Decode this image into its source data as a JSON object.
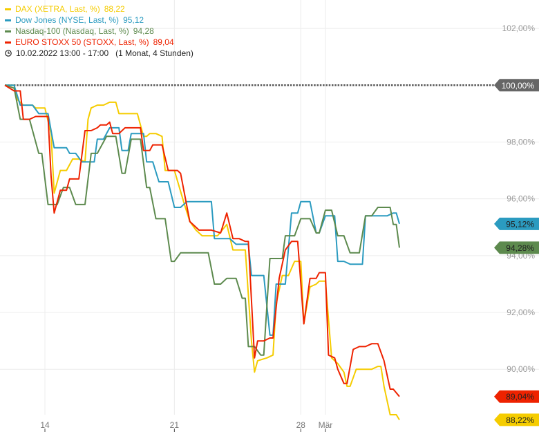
{
  "legend": [
    {
      "label": "DAX (XETRA, Last, %)",
      "value": "88,22",
      "color": "#f5cc00"
    },
    {
      "label": "Dow Jones (NYSE, Last, %)",
      "value": "95,12",
      "color": "#2b9bc0"
    },
    {
      "label": "Nasdaq-100 (Nasdaq, Last, %)",
      "value": "94,28",
      "color": "#5d8a4e"
    },
    {
      "label": "EURO STOXX 50 (STOXX, Last, %)",
      "value": "89,04",
      "color": "#ee2200"
    }
  ],
  "time": {
    "icon": "clock-icon",
    "date_range": "10.02.2022 13:00 - 17:00",
    "period": "(1 Monat, 4 Stunden)"
  },
  "chart_data": {
    "type": "line",
    "y_unit": "%",
    "ylim": [
      88.4,
      103.0
    ],
    "yticks": [
      {
        "value": 90,
        "label": "90,00%"
      },
      {
        "value": 92,
        "label": "92,00%"
      },
      {
        "value": 94,
        "label": "94,00%"
      },
      {
        "value": 96,
        "label": "96,00%"
      },
      {
        "value": 98,
        "label": "98,00%"
      },
      {
        "value": 102,
        "label": "102,00%"
      }
    ],
    "baseline": {
      "value": 100,
      "label": "100,00%",
      "color": "#666666"
    },
    "xticks": [
      {
        "index": 13,
        "label": "14"
      },
      {
        "index": 55,
        "label": "21"
      },
      {
        "index": 96,
        "label": "28"
      },
      {
        "index": 104,
        "label": "Mär"
      }
    ],
    "x_count": 128,
    "grid": true,
    "series": [
      {
        "name": "DAX (XETRA, Last, %)",
        "color": "#f5cc00",
        "last_label": "88,22%",
        "label_text_color": "#222222",
        "points": [
          [
            0,
            100
          ],
          [
            3,
            100
          ],
          [
            4,
            99.5
          ],
          [
            6,
            99.3
          ],
          [
            9,
            99.3
          ],
          [
            10,
            99.2
          ],
          [
            13,
            99.2
          ],
          [
            15,
            98.3
          ],
          [
            16,
            96.2
          ],
          [
            18,
            97
          ],
          [
            20,
            97
          ],
          [
            22,
            97.4
          ],
          [
            24,
            97.4
          ],
          [
            26,
            97.3
          ],
          [
            27,
            98.8
          ],
          [
            28,
            99.2
          ],
          [
            30,
            99.3
          ],
          [
            32,
            99.3
          ],
          [
            34,
            99.4
          ],
          [
            36,
            99.4
          ],
          [
            37,
            99.0
          ],
          [
            38,
            99.0
          ],
          [
            41,
            99.0
          ],
          [
            43,
            99.0
          ],
          [
            45,
            98.2
          ],
          [
            46,
            98.2
          ],
          [
            47,
            98.3
          ],
          [
            49,
            98.3
          ],
          [
            51,
            98.2
          ],
          [
            52,
            97.0
          ],
          [
            55,
            97.0
          ],
          [
            58,
            95.9
          ],
          [
            60,
            95.2
          ],
          [
            62,
            94.9
          ],
          [
            64,
            94.7
          ],
          [
            66,
            94.7
          ],
          [
            69,
            94.7
          ],
          [
            72,
            95.1
          ],
          [
            74,
            94.2
          ],
          [
            78,
            94.2
          ],
          [
            80,
            91.0
          ],
          [
            81,
            89.9
          ],
          [
            82,
            90.3
          ],
          [
            85,
            90.4
          ],
          [
            87,
            90.5
          ],
          [
            88,
            92.3
          ],
          [
            90,
            93.3
          ],
          [
            92,
            93.3
          ],
          [
            94,
            93.8
          ],
          [
            96,
            93.8
          ],
          [
            97,
            91.6
          ],
          [
            99,
            92.9
          ],
          [
            101,
            93.0
          ],
          [
            102,
            93.1
          ],
          [
            104,
            93.1
          ],
          [
            106,
            90.4
          ],
          [
            108,
            90.2
          ],
          [
            110,
            89.9
          ],
          [
            111,
            89.4
          ],
          [
            112,
            89.4
          ],
          [
            114,
            90.0
          ],
          [
            117,
            90.0
          ],
          [
            119,
            90.0
          ],
          [
            121,
            90.1
          ],
          [
            122,
            90.1
          ],
          [
            123,
            89.4
          ],
          [
            125,
            88.4
          ],
          [
            127,
            88.4
          ],
          [
            128,
            88.22
          ]
        ]
      },
      {
        "name": "Dow Jones (NYSE, Last, %)",
        "color": "#2b9bc0",
        "last_label": "95,12%",
        "label_text_color": "#222222",
        "points": [
          [
            0,
            100
          ],
          [
            3,
            100
          ],
          [
            5,
            99.3
          ],
          [
            9,
            99.3
          ],
          [
            11,
            99.0
          ],
          [
            14,
            99.0
          ],
          [
            16,
            97.8
          ],
          [
            20,
            97.8
          ],
          [
            21,
            97.6
          ],
          [
            23,
            97.6
          ],
          [
            25,
            97.3
          ],
          [
            27,
            97.3
          ],
          [
            29,
            97.3
          ],
          [
            30,
            98.1
          ],
          [
            32,
            98.1
          ],
          [
            34,
            98.5
          ],
          [
            37,
            98.5
          ],
          [
            38,
            97.7
          ],
          [
            40,
            97.7
          ],
          [
            41,
            98.3
          ],
          [
            45,
            98.3
          ],
          [
            46,
            97.3
          ],
          [
            48,
            97.3
          ],
          [
            50,
            96.6
          ],
          [
            53,
            96.6
          ],
          [
            55,
            95.7
          ],
          [
            57,
            95.7
          ],
          [
            59,
            95.9
          ],
          [
            67,
            95.9
          ],
          [
            68,
            94.6
          ],
          [
            73,
            94.6
          ],
          [
            75,
            94.4
          ],
          [
            79,
            94.4
          ],
          [
            80,
            93.3
          ],
          [
            84,
            93.3
          ],
          [
            86,
            91.2
          ],
          [
            87,
            91.2
          ],
          [
            88,
            93.0
          ],
          [
            91,
            93.0
          ],
          [
            93,
            95.5
          ],
          [
            95,
            95.5
          ],
          [
            96,
            95.9
          ],
          [
            99,
            95.9
          ],
          [
            101,
            94.8
          ],
          [
            102,
            94.8
          ],
          [
            104,
            95.4
          ],
          [
            107,
            95.4
          ],
          [
            108,
            93.8
          ],
          [
            110,
            93.8
          ],
          [
            112,
            93.7
          ],
          [
            116,
            93.7
          ],
          [
            117,
            95.4
          ],
          [
            119,
            95.4
          ],
          [
            121,
            95.4
          ],
          [
            124,
            95.4
          ],
          [
            126,
            95.5
          ],
          [
            127,
            95.5
          ],
          [
            128,
            95.12
          ]
        ]
      },
      {
        "name": "Nasdaq-100 (Nasdaq, Last, %)",
        "color": "#5d8a4e",
        "last_label": "94,28%",
        "label_text_color": "#222222",
        "points": [
          [
            0,
            100
          ],
          [
            3,
            99.9
          ],
          [
            5,
            98.8
          ],
          [
            8,
            98.8
          ],
          [
            11,
            97.6
          ],
          [
            12,
            97.6
          ],
          [
            14,
            95.8
          ],
          [
            17,
            95.8
          ],
          [
            19,
            96.4
          ],
          [
            21,
            96.4
          ],
          [
            23,
            95.8
          ],
          [
            26,
            95.8
          ],
          [
            28,
            97.6
          ],
          [
            30,
            97.6
          ],
          [
            33,
            98.2
          ],
          [
            36,
            98.2
          ],
          [
            38,
            96.9
          ],
          [
            39,
            96.9
          ],
          [
            41,
            98.1
          ],
          [
            44,
            98.1
          ],
          [
            46,
            96.4
          ],
          [
            47,
            96.4
          ],
          [
            49,
            95.3
          ],
          [
            52,
            95.3
          ],
          [
            54,
            93.8
          ],
          [
            55,
            93.8
          ],
          [
            57,
            94.1
          ],
          [
            66,
            94.1
          ],
          [
            68,
            93.0
          ],
          [
            70,
            93.0
          ],
          [
            72,
            93.2
          ],
          [
            75,
            93.2
          ],
          [
            77,
            92.5
          ],
          [
            78,
            92.5
          ],
          [
            79,
            90.8
          ],
          [
            81,
            90.8
          ],
          [
            83,
            90.5
          ],
          [
            84,
            90.5
          ],
          [
            86,
            93.9
          ],
          [
            90,
            93.9
          ],
          [
            91,
            94.7
          ],
          [
            94,
            94.7
          ],
          [
            96,
            95.3
          ],
          [
            99,
            95.3
          ],
          [
            101,
            94.8
          ],
          [
            102,
            94.8
          ],
          [
            104,
            95.6
          ],
          [
            106,
            95.6
          ],
          [
            108,
            94.7
          ],
          [
            110,
            94.7
          ],
          [
            112,
            94.1
          ],
          [
            115,
            94.1
          ],
          [
            117,
            95.4
          ],
          [
            119,
            95.4
          ],
          [
            121,
            95.7
          ],
          [
            125,
            95.7
          ],
          [
            126,
            95.1
          ],
          [
            127,
            95.1
          ],
          [
            128,
            94.28
          ]
        ]
      },
      {
        "name": "EURO STOXX 50 (STOXX, Last, %)",
        "color": "#ee2200",
        "last_label": "89,04%",
        "label_text_color": "#222222",
        "points": [
          [
            0,
            100
          ],
          [
            3,
            99.8
          ],
          [
            5,
            99.8
          ],
          [
            6,
            98.8
          ],
          [
            8,
            98.8
          ],
          [
            10,
            98.9
          ],
          [
            14,
            98.9
          ],
          [
            15,
            96.8
          ],
          [
            16,
            95.5
          ],
          [
            18,
            96.3
          ],
          [
            20,
            96.3
          ],
          [
            21,
            96.7
          ],
          [
            24,
            96.7
          ],
          [
            26,
            98.4
          ],
          [
            28,
            98.4
          ],
          [
            30,
            98.5
          ],
          [
            31,
            98.6
          ],
          [
            33,
            98.6
          ],
          [
            34,
            98.7
          ],
          [
            35,
            98.3
          ],
          [
            37,
            98.3
          ],
          [
            39,
            98.5
          ],
          [
            44,
            98.5
          ],
          [
            45,
            97.7
          ],
          [
            47,
            97.7
          ],
          [
            48,
            97.9
          ],
          [
            51,
            97.9
          ],
          [
            53,
            97.0
          ],
          [
            56,
            97.0
          ],
          [
            57,
            96.9
          ],
          [
            60,
            95.2
          ],
          [
            63,
            94.9
          ],
          [
            67,
            94.9
          ],
          [
            70,
            94.8
          ],
          [
            72,
            95.5
          ],
          [
            74,
            94.6
          ],
          [
            76,
            94.6
          ],
          [
            78,
            94.5
          ],
          [
            79,
            94.5
          ],
          [
            81,
            90.4
          ],
          [
            82,
            91.0
          ],
          [
            84,
            91.0
          ],
          [
            86,
            91.1
          ],
          [
            87,
            91.1
          ],
          [
            89,
            93.2
          ],
          [
            91,
            94.2
          ],
          [
            93,
            94.5
          ],
          [
            95,
            94.5
          ],
          [
            97,
            91.6
          ],
          [
            99,
            93.2
          ],
          [
            101,
            93.2
          ],
          [
            102,
            93.4
          ],
          [
            104,
            93.4
          ],
          [
            105,
            90.5
          ],
          [
            107,
            90.4
          ],
          [
            108,
            90.0
          ],
          [
            110,
            89.5
          ],
          [
            111,
            89.5
          ],
          [
            113,
            90.7
          ],
          [
            115,
            90.8
          ],
          [
            117,
            90.8
          ],
          [
            119,
            90.9
          ],
          [
            121,
            90.9
          ],
          [
            123,
            90.3
          ],
          [
            125,
            89.3
          ],
          [
            126,
            89.3
          ],
          [
            128,
            89.04
          ]
        ]
      }
    ]
  }
}
